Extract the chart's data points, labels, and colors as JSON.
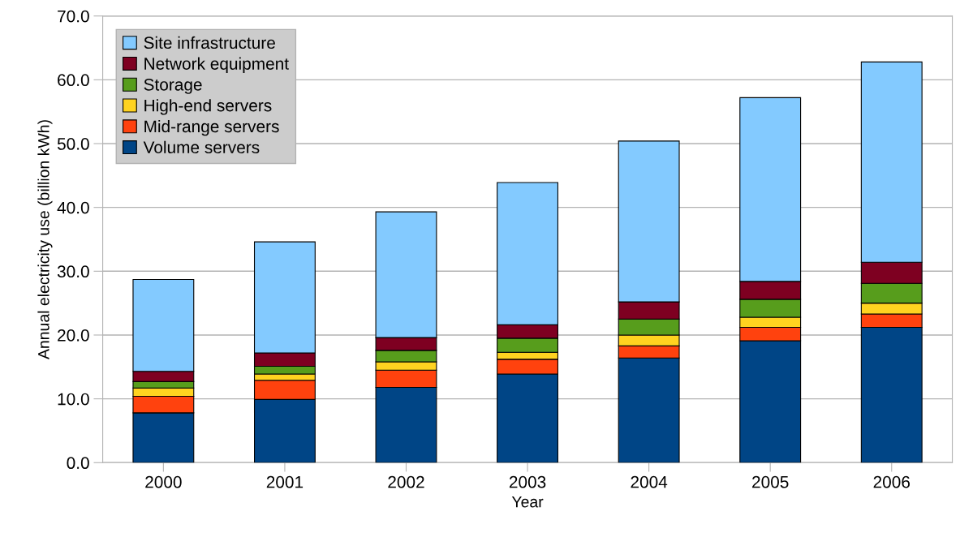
{
  "chart_data": {
    "type": "bar",
    "stacked": true,
    "xlabel": "Year",
    "ylabel": "Annual electricity use (billion kWh)",
    "categories": [
      "2000",
      "2001",
      "2002",
      "2003",
      "2004",
      "2005",
      "2006"
    ],
    "series": [
      {
        "name": "Volume servers",
        "color": "#004586",
        "values": [
          7.8,
          9.9,
          11.8,
          13.9,
          16.4,
          19.1,
          21.2
        ]
      },
      {
        "name": "Mid-range servers",
        "color": "#ff420e",
        "values": [
          2.6,
          3.0,
          2.7,
          2.3,
          1.9,
          2.1,
          2.1
        ]
      },
      {
        "name": "High-end servers",
        "color": "#ffd320",
        "values": [
          1.3,
          1.0,
          1.3,
          1.1,
          1.7,
          1.6,
          1.7
        ]
      },
      {
        "name": "Storage",
        "color": "#579d1c",
        "values": [
          1.0,
          1.2,
          1.8,
          2.2,
          2.5,
          2.8,
          3.1
        ]
      },
      {
        "name": "Network equipment",
        "color": "#7e0021",
        "values": [
          1.6,
          2.1,
          2.0,
          2.1,
          2.7,
          2.8,
          3.3
        ]
      },
      {
        "name": "Site infrastructure",
        "color": "#83caff",
        "values": [
          14.4,
          17.4,
          19.7,
          22.3,
          25.2,
          28.8,
          31.4
        ]
      }
    ],
    "ylim": [
      0,
      70
    ],
    "yticks": [
      {
        "value": 0,
        "label": "0.0"
      },
      {
        "value": 10,
        "label": "10.0"
      },
      {
        "value": 20,
        "label": "20.0"
      },
      {
        "value": 30,
        "label": "30.0"
      },
      {
        "value": 40,
        "label": "40.0"
      },
      {
        "value": 50,
        "label": "50.0"
      },
      {
        "value": 60,
        "label": "60.0"
      },
      {
        "value": 70,
        "label": "70.0"
      }
    ],
    "grid": "y",
    "legend": "top left"
  }
}
